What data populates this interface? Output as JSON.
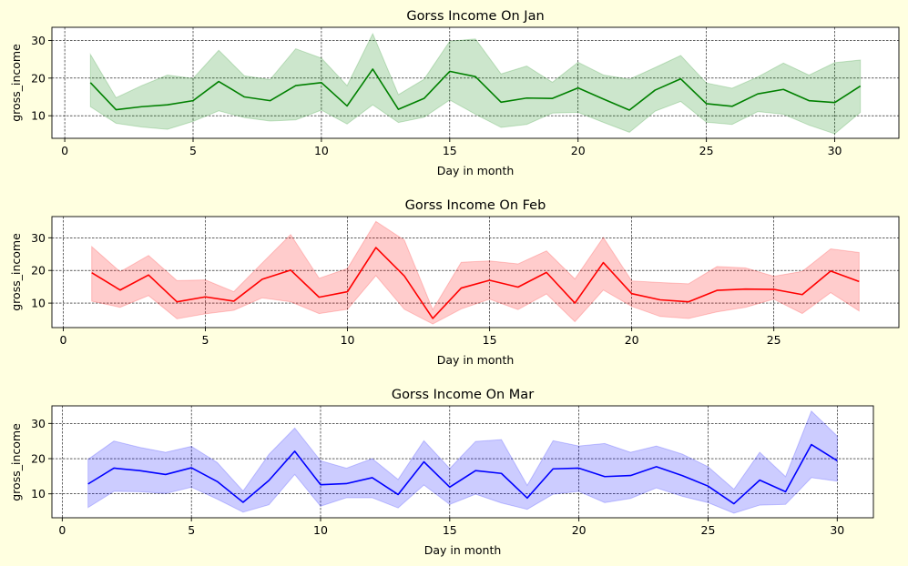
{
  "figure": {
    "background": "#ffffe0",
    "axes_background": "#ffffff"
  },
  "chart_data": [
    {
      "type": "line",
      "title": "Gorss Income On Jan",
      "xlabel": "Day in month",
      "ylabel": "gross_income",
      "color": "#008000",
      "band_color": "#008000",
      "grid": true,
      "xlim": [
        -0.5,
        32.5
      ],
      "ylim": [
        4,
        33.5
      ],
      "xticks": [
        0,
        5,
        10,
        15,
        20,
        25,
        30
      ],
      "yticks": [
        10,
        20,
        30
      ],
      "x": [
        1,
        2,
        3,
        4,
        5,
        6,
        7,
        8,
        9,
        10,
        11,
        12,
        13,
        14,
        15,
        16,
        17,
        18,
        19,
        20,
        21,
        22,
        23,
        24,
        25,
        26,
        27,
        28,
        29,
        30,
        31
      ],
      "values": [
        18.8,
        11.6,
        12.4,
        12.9,
        14.0,
        19.1,
        15.0,
        14.0,
        18.0,
        18.8,
        12.6,
        22.4,
        11.7,
        14.6,
        21.8,
        20.4,
        13.6,
        14.7,
        14.6,
        17.4,
        14.4,
        11.5,
        16.8,
        19.8,
        13.2,
        12.5,
        15.8,
        17.0,
        14.0,
        13.5,
        17.9
      ],
      "band_upper": [
        26.3,
        14.8,
        18.0,
        20.8,
        19.9,
        27.4,
        20.6,
        19.6,
        27.8,
        25.3,
        18.0,
        31.8,
        15.6,
        19.7,
        29.8,
        30.4,
        21.1,
        23.2,
        18.9,
        24.2,
        20.8,
        19.7,
        22.8,
        26.0,
        18.7,
        17.3,
        20.3,
        24.0,
        20.8,
        24.1,
        24.8
      ],
      "band_lower": [
        12.4,
        8.0,
        7.0,
        6.4,
        8.5,
        11.3,
        9.5,
        8.6,
        8.9,
        11.5,
        7.8,
        12.9,
        8.2,
        9.6,
        14.2,
        10.4,
        6.9,
        7.7,
        10.7,
        10.9,
        8.2,
        5.6,
        11.2,
        13.8,
        8.3,
        7.7,
        11.1,
        10.4,
        7.5,
        5.2,
        10.9
      ]
    },
    {
      "type": "line",
      "title": "Gorss Income On Feb",
      "xlabel": "Day in month",
      "ylabel": "gross_income",
      "color": "#ff0000",
      "band_color": "#ff0000",
      "grid": true,
      "xlim": [
        -0.4,
        29.4
      ],
      "ylim": [
        2.5,
        36.5
      ],
      "xticks": [
        0,
        5,
        10,
        15,
        20,
        25
      ],
      "yticks": [
        10,
        20,
        30
      ],
      "x": [
        1,
        2,
        3,
        4,
        5,
        6,
        7,
        8,
        9,
        10,
        11,
        12,
        13,
        14,
        15,
        16,
        17,
        18,
        19,
        20,
        21,
        22,
        23,
        24,
        25,
        26,
        27,
        28
      ],
      "values": [
        19.3,
        14.0,
        18.6,
        10.4,
        11.9,
        10.6,
        17.3,
        20.1,
        11.8,
        13.5,
        27.0,
        18.3,
        5.3,
        14.6,
        17.0,
        14.9,
        19.4,
        10.0,
        22.4,
        12.9,
        11.0,
        10.4,
        13.9,
        14.3,
        14.2,
        12.6,
        19.8,
        16.6
      ],
      "band_upper": [
        27.3,
        19.6,
        24.6,
        16.9,
        17.1,
        13.5,
        22.3,
        31.0,
        17.6,
        20.6,
        35.0,
        29.3,
        8.0,
        22.5,
        22.9,
        22.0,
        26.0,
        17.4,
        30.1,
        16.8,
        16.3,
        15.9,
        21.2,
        20.8,
        18.2,
        19.7,
        26.6,
        25.5
      ],
      "band_lower": [
        10.6,
        8.7,
        12.3,
        5.2,
        6.7,
        7.8,
        11.6,
        10.4,
        6.8,
        8.1,
        18.4,
        8.1,
        3.6,
        8.2,
        11.2,
        8.0,
        12.8,
        4.3,
        14.0,
        9.0,
        5.9,
        5.3,
        7.3,
        8.7,
        11.2,
        6.8,
        13.2,
        7.6
      ]
    },
    {
      "type": "line",
      "title": "Gorss Income On Mar",
      "xlabel": "Day in month",
      "ylabel": "gross_income",
      "color": "#0000ff",
      "band_color": "#0000ff",
      "grid": true,
      "xlim": [
        -0.4,
        31.4
      ],
      "ylim": [
        3.2,
        35.0
      ],
      "xticks": [
        0,
        5,
        10,
        15,
        20,
        25,
        30
      ],
      "yticks": [
        10,
        20,
        30
      ],
      "x": [
        1,
        2,
        3,
        4,
        5,
        6,
        7,
        8,
        9,
        10,
        11,
        12,
        13,
        14,
        15,
        16,
        17,
        18,
        19,
        20,
        21,
        22,
        23,
        24,
        25,
        26,
        27,
        28,
        29,
        30
      ],
      "values": [
        12.8,
        17.3,
        16.6,
        15.5,
        17.4,
        13.5,
        7.6,
        13.8,
        22.1,
        12.6,
        12.9,
        14.6,
        9.8,
        19.1,
        11.9,
        16.6,
        15.8,
        8.8,
        17.1,
        17.3,
        14.9,
        15.2,
        17.7,
        15.2,
        12.2,
        7.2,
        13.9,
        10.6,
        24.0,
        19.4
      ],
      "band_upper": [
        19.8,
        25.0,
        23.2,
        21.8,
        23.5,
        18.9,
        10.8,
        21.2,
        28.7,
        19.4,
        17.3,
        20.0,
        14.1,
        25.1,
        17.2,
        24.9,
        25.4,
        12.4,
        25.1,
        23.6,
        24.3,
        21.8,
        23.6,
        21.3,
        17.7,
        11.3,
        21.8,
        14.9,
        33.5,
        26.4
      ],
      "band_lower": [
        6.1,
        10.7,
        10.6,
        10.1,
        11.9,
        8.5,
        4.8,
        6.9,
        15.5,
        6.5,
        8.9,
        8.9,
        6.0,
        12.5,
        7.0,
        9.9,
        7.4,
        5.6,
        9.9,
        10.7,
        7.5,
        8.7,
        11.7,
        9.3,
        7.5,
        4.5,
        6.8,
        7.0,
        14.6,
        13.6
      ]
    }
  ]
}
